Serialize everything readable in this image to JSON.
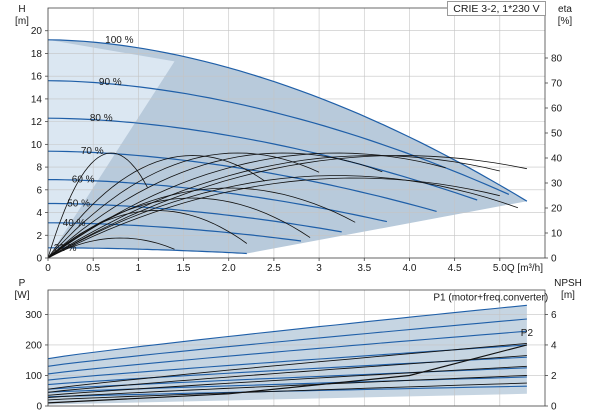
{
  "title": "CRIE 3-2, 1*230 V",
  "colors": {
    "band": "#b8cadb",
    "band_light": "#e3eef8",
    "curve_blue": "#1f5fa8",
    "curve_black": "#111111",
    "grid": "#c4c4c4"
  },
  "chart_data": [
    {
      "type": "line",
      "name": "upper",
      "xlabel": "Q [m³/h]",
      "ylabel_left": "H",
      "ylabel_left_unit": "[m]",
      "ylabel_right": "eta",
      "ylabel_right_unit": "[%]",
      "xlim": [
        0,
        5.5
      ],
      "ylim_left": [
        0,
        22
      ],
      "ylim_right": [
        0,
        100
      ],
      "x_ticks": [
        0,
        0.5,
        1,
        1.5,
        2,
        2.5,
        3,
        3.5,
        4,
        4.5,
        5
      ],
      "x_tick_labels": [
        "0",
        "0.5",
        "1",
        "1.5",
        "2.0",
        "2.5",
        "3",
        "3.5",
        "4.0",
        "4.5",
        "5.0"
      ],
      "y_ticks_left": [
        0,
        2,
        4,
        6,
        8,
        10,
        12,
        14,
        16,
        18,
        20
      ],
      "y_ticks_right": [
        0,
        10,
        20,
        30,
        40,
        50,
        60,
        70,
        80
      ],
      "grid": true,
      "speed_labels": [
        {
          "text": "100 %",
          "x": 0.9,
          "y": 19.2
        },
        {
          "text": "90 %",
          "x": 0.8,
          "y": 15.5
        },
        {
          "text": "80 %",
          "x": 0.7,
          "y": 12.3
        },
        {
          "text": "70 %",
          "x": 0.6,
          "y": 9.4
        },
        {
          "text": "60 %",
          "x": 0.5,
          "y": 6.9
        },
        {
          "text": "50 %",
          "x": 0.45,
          "y": 4.8
        },
        {
          "text": "40 %",
          "x": 0.4,
          "y": 3.1
        },
        {
          "text": "21 %",
          "x": 0.3,
          "y": 0.9
        }
      ],
      "head_curves": [
        {
          "speed": "100 %",
          "shut_off_head": 19.2,
          "max_flow": 5.3,
          "end_head": 5.0
        },
        {
          "speed": "90 %",
          "shut_off_head": 15.6,
          "max_flow": 5.1,
          "end_head": 5.6
        },
        {
          "speed": "80 %",
          "shut_off_head": 12.3,
          "max_flow": 4.75,
          "end_head": 5.1
        },
        {
          "speed": "70 %",
          "shut_off_head": 9.4,
          "max_flow": 4.3,
          "end_head": 4.1
        },
        {
          "speed": "60 %",
          "shut_off_head": 6.9,
          "max_flow": 3.75,
          "end_head": 3.2
        },
        {
          "speed": "50 %",
          "shut_off_head": 4.8,
          "max_flow": 3.25,
          "end_head": 2.3
        },
        {
          "speed": "40 %",
          "shut_off_head": 3.1,
          "max_flow": 2.8,
          "end_head": 1.5
        },
        {
          "speed": "21 %",
          "shut_off_head": 0.9,
          "max_flow": 2.2,
          "end_head": 0.4
        }
      ],
      "efficiency_curves": [
        {
          "peak_eta": 42,
          "peak_flow": 0.7,
          "max_flow": 1.1
        },
        {
          "peak_eta": 41,
          "peak_flow": 1.6,
          "max_flow": 2.4
        },
        {
          "peak_eta": 42,
          "peak_flow": 2.1,
          "max_flow": 3.0
        },
        {
          "peak_eta": 42,
          "peak_flow": 2.6,
          "max_flow": 3.7
        },
        {
          "peak_eta": 42,
          "peak_flow": 3.2,
          "max_flow": 4.4
        },
        {
          "peak_eta": 41,
          "peak_flow": 3.6,
          "max_flow": 5.0
        },
        {
          "peak_eta": 41,
          "peak_flow": 3.9,
          "max_flow": 5.3
        },
        {
          "peak_eta": 33,
          "peak_flow": 3.2,
          "max_flow": 5.2
        },
        {
          "peak_eta": 32,
          "peak_flow": 3.4,
          "max_flow": 5.0
        },
        {
          "peak_eta": 28,
          "peak_flow": 2.0,
          "max_flow": 3.4
        },
        {
          "peak_eta": 24,
          "peak_flow": 1.6,
          "max_flow": 2.9
        },
        {
          "peak_eta": 19,
          "peak_flow": 1.2,
          "max_flow": 2.2
        },
        {
          "peak_eta": 8,
          "peak_flow": 0.8,
          "max_flow": 1.4
        }
      ]
    },
    {
      "type": "line",
      "name": "lower",
      "ylabel_left": "P",
      "ylabel_left_unit": "[W]",
      "ylabel_right": "NPSH",
      "ylabel_right_unit": "[m]",
      "xlim": [
        0,
        5.5
      ],
      "ylim_left": [
        0,
        380
      ],
      "ylim_right": [
        0,
        7.6
      ],
      "y_ticks_left": [
        0,
        100,
        200,
        300
      ],
      "y_ticks_right": [
        0,
        2,
        4,
        6
      ],
      "grid": true,
      "series_labels": [
        {
          "text": "P1 (motor+freq.converter)",
          "x": 4.9,
          "y": 345
        },
        {
          "text": "P2",
          "x": 5.3,
          "y": 230
        }
      ],
      "power_curves_p1": [
        {
          "start": 155,
          "end": 330
        },
        {
          "start": 130,
          "end": 285
        },
        {
          "start": 105,
          "end": 245
        },
        {
          "start": 85,
          "end": 200
        },
        {
          "start": 70,
          "end": 160
        },
        {
          "start": 55,
          "end": 125
        },
        {
          "start": 45,
          "end": 95
        },
        {
          "start": 30,
          "end": 65
        }
      ],
      "power_curves_p2": [
        {
          "start": 55,
          "end": 205
        },
        {
          "start": 45,
          "end": 165
        },
        {
          "start": 35,
          "end": 130
        },
        {
          "start": 28,
          "end": 100
        },
        {
          "start": 20,
          "end": 75
        }
      ],
      "npsh_curve": [
        {
          "q": 0,
          "npsh": 0.2
        },
        {
          "q": 2,
          "npsh": 0.8
        },
        {
          "q": 4,
          "npsh": 2.0
        },
        {
          "q": 5.3,
          "npsh": 4.0
        }
      ]
    }
  ]
}
